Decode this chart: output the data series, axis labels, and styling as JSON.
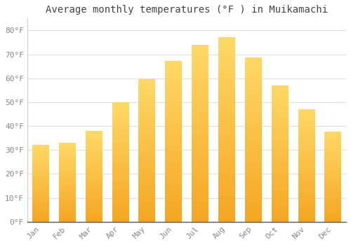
{
  "title": "Average monthly temperatures (°F ) in Muikamachi",
  "months": [
    "Jan",
    "Feb",
    "Mar",
    "Apr",
    "May",
    "Jun",
    "Jul",
    "Aug",
    "Sep",
    "Oct",
    "Nov",
    "Dec"
  ],
  "values": [
    32,
    33,
    38,
    50,
    59.5,
    67,
    74,
    77,
    68.5,
    57,
    47,
    37.5
  ],
  "bar_color_bottom": "#F5A623",
  "bar_color_top": "#FFD966",
  "background_color": "#FFFFFF",
  "grid_color": "#E0E0E0",
  "tick_color": "#888888",
  "text_color": "#444444",
  "ylim": [
    0,
    85
  ],
  "yticks": [
    0,
    10,
    20,
    30,
    40,
    50,
    60,
    70,
    80
  ],
  "title_fontsize": 10,
  "tick_fontsize": 8,
  "font_family": "monospace",
  "bar_width": 0.62
}
